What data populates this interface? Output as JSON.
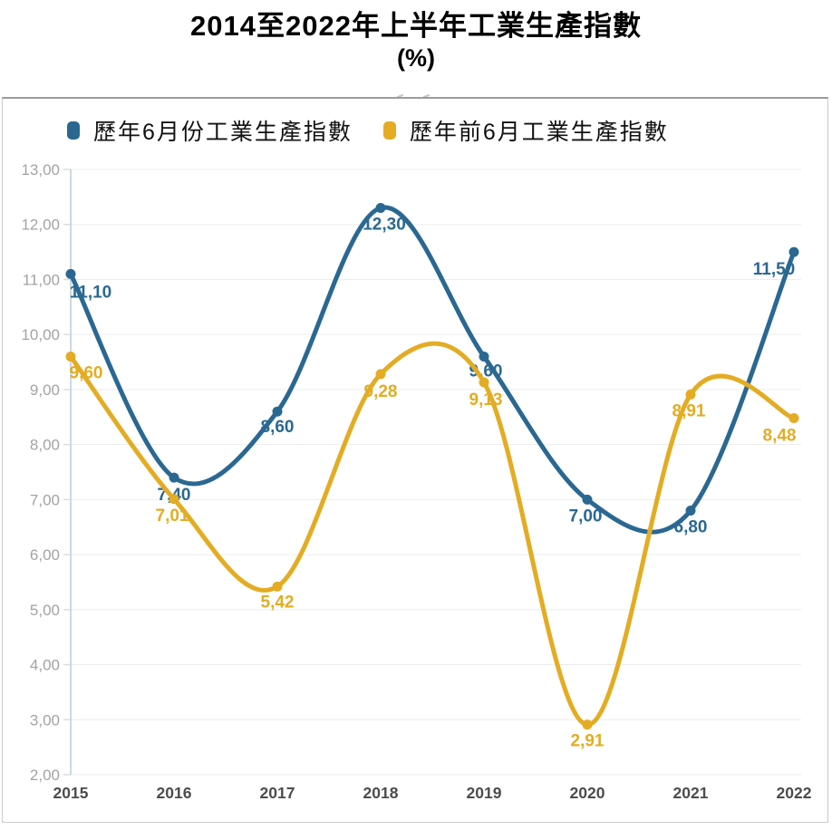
{
  "title": {
    "line1": "2014至2022年上半年工業生產指數",
    "line2": "(%)"
  },
  "legend": [
    {
      "label": "歷年6月份工業生產指數",
      "color": "#2a6892"
    },
    {
      "label": "歷年前6月工業生產指數",
      "color": "#e3ac23"
    }
  ],
  "chart_data": {
    "type": "line",
    "title": "2014至2022年上半年工業生產指數 (%)",
    "x": [
      2015,
      2016,
      2017,
      2018,
      2019,
      2020,
      2021,
      2022
    ],
    "xticks": [
      "2015",
      "2016",
      "2017",
      "2018",
      "2019",
      "2020",
      "2021",
      "2022"
    ],
    "yticks": [
      "13,00",
      "12,00",
      "11,00",
      "10,00",
      "9,00",
      "8,00",
      "7,00",
      "6,00",
      "5,00",
      "4,00",
      "3,00",
      "2,00"
    ],
    "ylim": [
      2,
      13
    ],
    "ytick_step": 1,
    "grid": true,
    "legend_position": "top-left",
    "decimal_separator": ",",
    "series": [
      {
        "name": "歷年6月份工業生產指數",
        "color": "#2a6892",
        "values": [
          11.1,
          7.4,
          8.6,
          12.3,
          9.6,
          7.0,
          6.8,
          11.5
        ],
        "labels": [
          "11,10",
          "7,40",
          "8,60",
          "12,30",
          "9,60",
          "7,00",
          "6,80",
          "11,50"
        ],
        "label_offsets": [
          [
            22,
            19
          ],
          [
            0,
            18
          ],
          [
            0,
            16
          ],
          [
            4,
            17
          ],
          [
            2,
            15
          ],
          [
            -2,
            17
          ],
          [
            0,
            17
          ],
          [
            -22,
            18
          ]
        ]
      },
      {
        "name": "歷年前6月工業生產指數",
        "color": "#e3ac23",
        "values": [
          9.6,
          7.01,
          5.42,
          9.28,
          9.13,
          2.91,
          8.91,
          8.48
        ],
        "labels": [
          "9,60",
          "7,01",
          "5,42",
          "9,28",
          "9,13",
          "2,91",
          "8,91",
          "8,48"
        ],
        "label_offsets": [
          [
            17,
            17
          ],
          [
            -2,
            17
          ],
          [
            0,
            16
          ],
          [
            0,
            18
          ],
          [
            2,
            18
          ],
          [
            0,
            17
          ],
          [
            -2,
            17
          ],
          [
            -16,
            18
          ]
        ]
      }
    ],
    "style": {
      "gridline_color": "#ededed",
      "axis_line_color": "#cdd7de",
      "tick_mark_color": "#dcdcdc",
      "ytick_label_color": "#a3a3a3",
      "xtick_label_color": "#4c4c4c"
    }
  }
}
